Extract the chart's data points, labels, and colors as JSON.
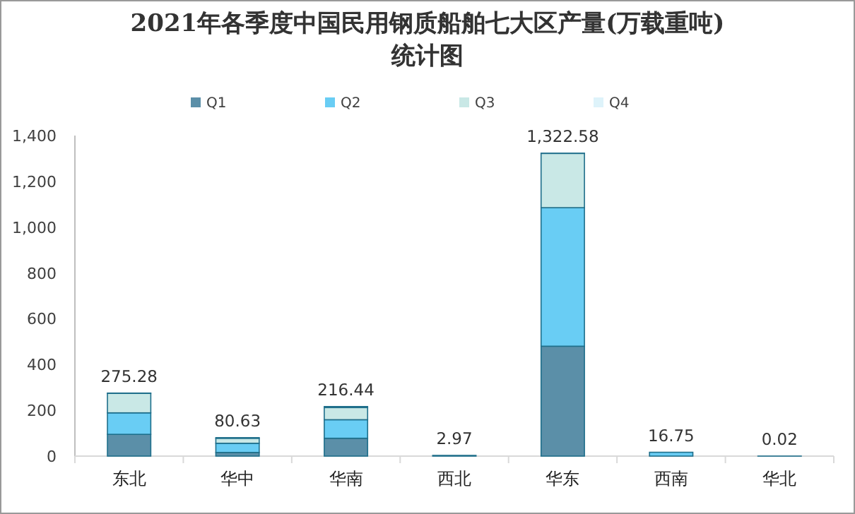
{
  "chart_data": {
    "type": "bar",
    "stacked": true,
    "title": "2021年各季度中国民用钢质船舶七大区产量(万载重吨)统计图",
    "categories": [
      "东北",
      "华中",
      "华南",
      "西北",
      "华东",
      "西南",
      "华北"
    ],
    "series": [
      {
        "name": "Q1",
        "color": "#5b8fa8",
        "values": [
          95,
          16,
          78,
          2.97,
          480,
          0,
          0.02
        ]
      },
      {
        "name": "Q2",
        "color": "#69cdf4",
        "values": [
          94,
          40,
          81,
          0,
          605,
          16.75,
          0
        ]
      },
      {
        "name": "Q3",
        "color": "#c9e8e6",
        "values": [
          85,
          22,
          53,
          0,
          237,
          0,
          0
        ]
      },
      {
        "name": "Q4",
        "color": "#def3fa",
        "values": [
          1.28,
          2.63,
          4.44,
          0,
          0.58,
          0,
          0
        ]
      }
    ],
    "totals": [
      "275.28",
      "80.63",
      "216.44",
      "2.97",
      "1,322.58",
      "16.75",
      "0.02"
    ],
    "ylim": [
      0,
      1400
    ],
    "yticks": [
      0,
      {
        "value": 200,
        "label": "200"
      },
      {
        "value": 400,
        "label": "400"
      },
      {
        "value": 600,
        "label": "600"
      },
      {
        "value": 800,
        "label": "800"
      },
      {
        "value": 1000,
        "label": "1,000"
      },
      {
        "value": 1200,
        "label": "1,200"
      },
      {
        "value": 1400,
        "label": "1,400"
      }
    ],
    "legend": "top",
    "grid": false
  }
}
